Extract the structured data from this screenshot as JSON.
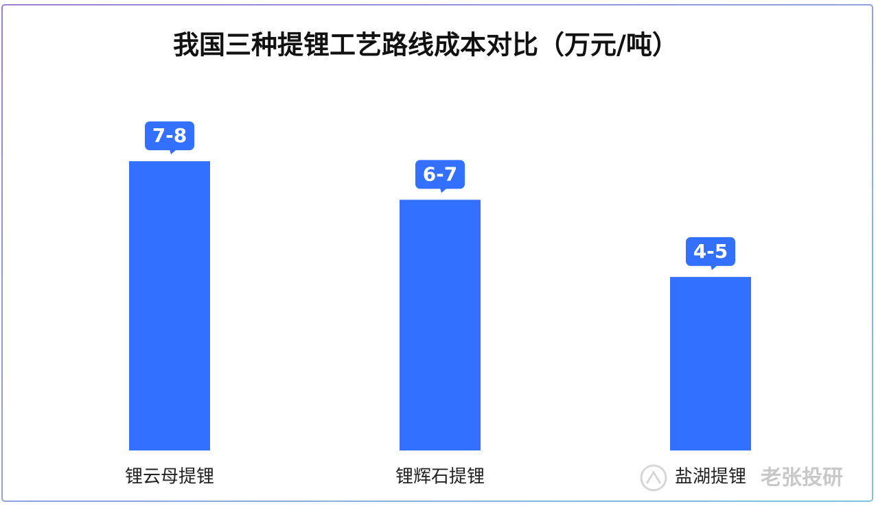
{
  "chart_data": {
    "type": "bar",
    "title": "我国三种提锂工艺路线成本对比（万元/吨）",
    "categories": [
      "锂云母提锂",
      "锂辉石提锂",
      "盐湖提锂"
    ],
    "values": [
      7.5,
      6.5,
      4.5
    ],
    "value_labels": [
      "7-8",
      "6-7",
      "4-5"
    ],
    "color": "#3370ff",
    "ylim": [
      0,
      8
    ],
    "watermark": "老张投研"
  }
}
